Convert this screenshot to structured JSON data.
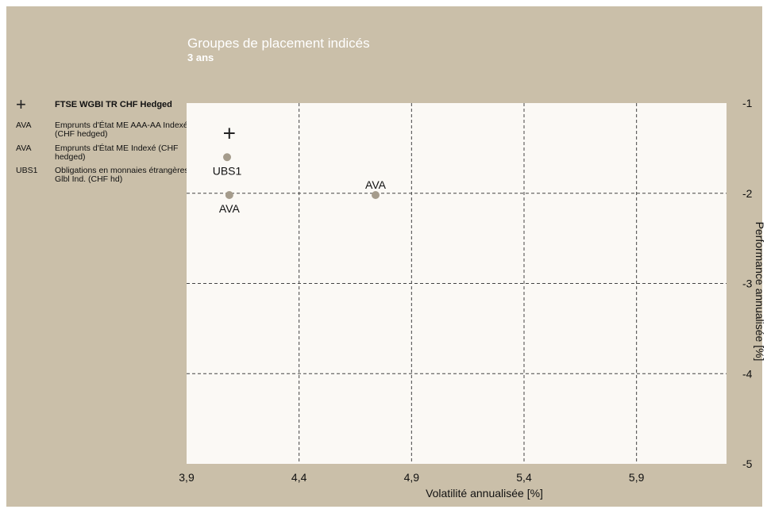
{
  "chart": {
    "title": "Groupes de placement indicés",
    "subtitle": "3 ans"
  },
  "legend": {
    "items": [
      {
        "marker": "+",
        "text": "FTSE WGBI TR CHF Hedged"
      },
      {
        "marker": "AVA",
        "text": "Emprunts d'État ME AAA-AA Indexé (CHF hedged)"
      },
      {
        "marker": "AVA",
        "text": "Emprunts d'État ME Indexé (CHF hedged)"
      },
      {
        "marker": "UBS1",
        "text": "Obligations en monnaies étrangères Glbl Ind. (CHF hd)"
      }
    ]
  },
  "chart_data": {
    "type": "scatter",
    "title": "Groupes de placement indicés",
    "subtitle": "3 ans",
    "xlabel": "Volatilité annualisée [%]",
    "ylabel": "Performance annualisée [%]",
    "xlim": [
      3.9,
      6.3
    ],
    "ylim": [
      -5,
      -1
    ],
    "x_ticks": [
      3.9,
      4.4,
      4.9,
      5.4,
      5.9
    ],
    "x_tick_labels": [
      "3,9",
      "4,4",
      "4,9",
      "5,4",
      "5,9"
    ],
    "y_ticks": [
      -1,
      -2,
      -3,
      -4,
      -5
    ],
    "y_tick_labels": [
      "-1",
      "-2",
      "-3",
      "-4",
      "-5"
    ],
    "grid": true,
    "colors": {
      "plot_bg": "#fbf9f5",
      "frame_bg": "#cabfa9",
      "point": "#a59c8c",
      "grid": "#444444",
      "benchmark": "#222222"
    },
    "points": [
      {
        "label": "+",
        "kind": "benchmark",
        "x": 4.09,
        "y": -1.34
      },
      {
        "label": "UBS1",
        "kind": "point",
        "x": 4.08,
        "y": -1.6,
        "label_pos": "below"
      },
      {
        "label": "AVA",
        "kind": "point",
        "x": 4.09,
        "y": -2.02,
        "label_pos": "below"
      },
      {
        "label": "AVA",
        "kind": "point",
        "x": 4.74,
        "y": -2.02,
        "label_pos": "above"
      }
    ]
  }
}
